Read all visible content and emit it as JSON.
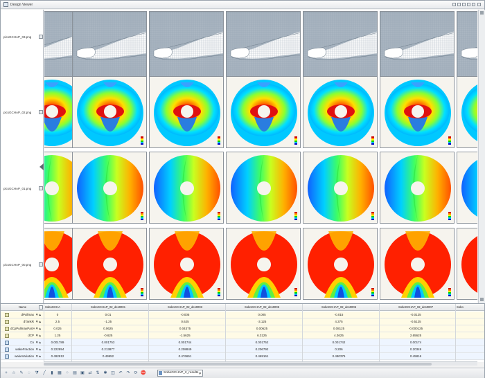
{
  "window": {
    "title": "Design Viewer",
    "title_buttons": [
      "pin-icon",
      "restore-icon",
      "float-icon",
      "minimize-icon",
      "maximize-icon",
      "close-icon"
    ]
  },
  "image_rows": [
    {
      "label": "picsGCHAP_03.png",
      "kind": "mesh"
    },
    {
      "label": "picsGCHAP_02.png",
      "kind": "contour-a"
    },
    {
      "label": "picsGCHAP_01.png",
      "kind": "contour-b"
    },
    {
      "label": "picsGCHAP_00.png",
      "kind": "contour-c"
    }
  ],
  "table": {
    "name_header": "Name",
    "columns": [
      "SoboGCHA",
      "SoboGCHAP_02_des0001",
      "SoboGCHAP_02_des0003",
      "SoboGCHAP_02_des0005",
      "SoboGCHAP_02_des0006",
      "SoboGCHAP_02_des0007",
      "Sobo"
    ],
    "rows": [
      {
        "name": "dPullmax",
        "kind": "input",
        "values": [
          "0",
          "0.01",
          "-0.005",
          "0.005",
          "-0.015",
          "-0.0125"
        ]
      },
      {
        "name": "dTankR",
        "kind": "input",
        "values": [
          "2.5",
          "-1.25",
          "0.625",
          "-3.125",
          "4.375",
          "-0.5125"
        ]
      },
      {
        "name": "dCpPullmaxPartA",
        "kind": "input",
        "values": [
          "0.025",
          "0.0625",
          "0.04375",
          "0.00625",
          "0.08125",
          "-0.000125"
        ]
      },
      {
        "name": "dCP",
        "kind": "input",
        "values": [
          "1.25",
          "-0.625",
          "-1.5625",
          "6.3125",
          "4.3625",
          "2.65625"
        ]
      },
      {
        "name": "Cn",
        "kind": "output",
        "values": [
          "0.001789",
          "0.001753",
          "0.001744",
          "0.001752",
          "0.001742",
          "0.00174"
        ]
      },
      {
        "name": "wakeFraction",
        "kind": "output",
        "values": [
          "0.222894",
          "0.213877",
          "0.208849",
          "0.206792",
          "0.206",
          "0.20349"
        ]
      },
      {
        "name": "wakeVariation",
        "kind": "output",
        "values": [
          "0.492812",
          "0.49952",
          "0.476651",
          "0.469161",
          "0.480375",
          "0.45816"
        ]
      }
    ]
  },
  "statusbar": {
    "tool_icons": [
      "plus-icon",
      "star-icon",
      "pencil-icon",
      "lasso-icon",
      "filter-icon",
      "line-icon",
      "chart-icon",
      "grid-icon",
      "scatter-icon",
      "table-icon",
      "image-icon",
      "compare-icon",
      "sort-icon",
      "cluster-icon",
      "group-icon",
      "undo-icon",
      "redo-icon",
      "refresh-icon",
      "stop-icon"
    ],
    "results_select": "SoboGCHAP_2_results"
  }
}
